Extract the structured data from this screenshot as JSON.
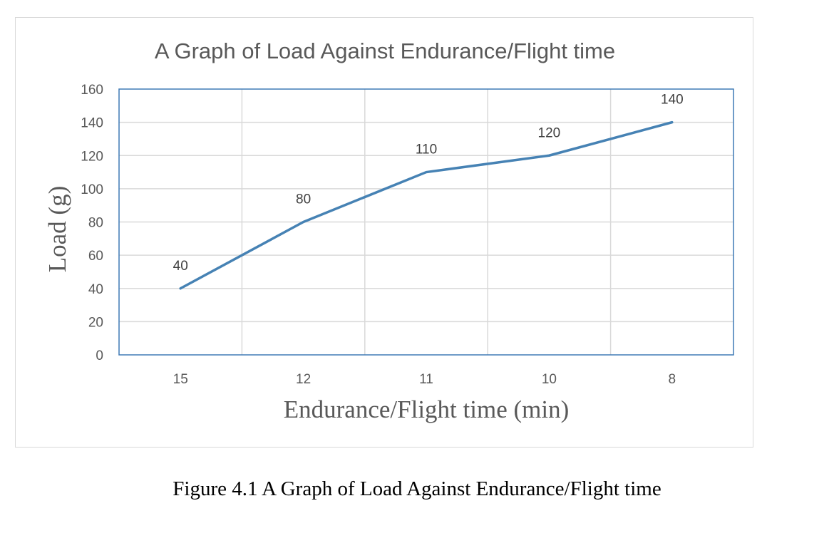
{
  "chart_data": {
    "type": "line",
    "title": "A Graph of Load Against Endurance/Flight time",
    "xlabel": "Endurance/Flight time (min)",
    "ylabel": "Load (g)",
    "categories": [
      "15",
      "12",
      "11",
      "10",
      "8"
    ],
    "series": [
      {
        "name": "Load",
        "values": [
          40,
          80,
          110,
          120,
          140
        ],
        "color": "#4682b4"
      }
    ],
    "data_labels": [
      "40",
      "80",
      "110",
      "120",
      "140"
    ],
    "ylim": [
      0,
      160
    ],
    "yticks": [
      0,
      20,
      40,
      60,
      80,
      100,
      120,
      140,
      160
    ],
    "grid": true,
    "legend": "none"
  },
  "caption": "Figure 4.1 A Graph of Load Against Endurance/Flight time",
  "colors": {
    "line": "#4682b4",
    "grid": "#d9d9d9",
    "plot_border": "#3f7ab6",
    "text": "#595959"
  }
}
